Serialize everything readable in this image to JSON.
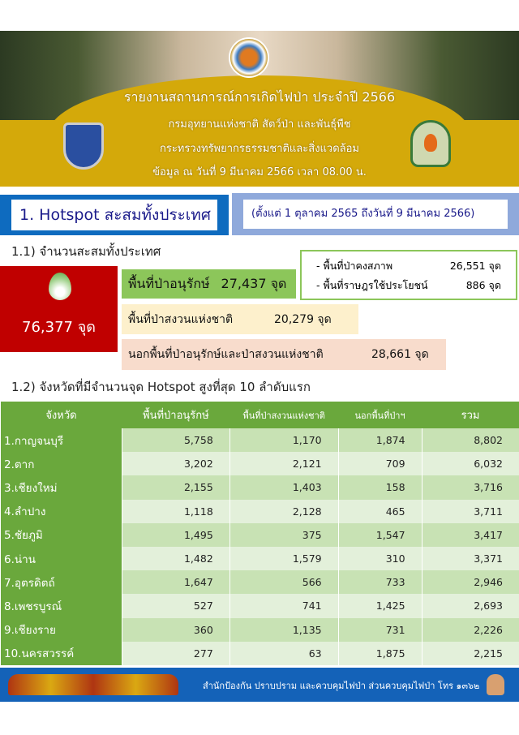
{
  "header": {
    "title": "รายงานสถานการณ์การเกิดไฟป่า ประจำปี 2566",
    "department": "กรมอุทยานแห่งชาติ สัตว์ป่า และพันธุ์พืช",
    "ministry": "กระทรวงทรัพยากรธรรมชาติและสิ่งแวดล้อม",
    "data_as_of": "ข้อมูล ณ วันที่ 9 มีนาคม 2566 เวลา 08.00 น."
  },
  "section1": {
    "title": "1.  Hotspot สะสมทั้งประเทศ",
    "period": "(ตั้งแต่ 1 ตุลาคม 2565 ถึงวันที่ 9 มีนาคม 2566)",
    "sub1": "1.1) จำนวนสะสมทั้งประเทศ",
    "total": "76,377 จุด",
    "conservation": {
      "label": "พื้นที่ป่าอนุรักษ์",
      "value": "27,437 จุด",
      "intact_label": "- พื้นที่ป่าคงสภาพ",
      "intact_value": "26,551  จุด",
      "used_label": "- พื้นที่ราษฎรใช้ประโยชน์",
      "used_value": "886  จุด"
    },
    "national_reserve": {
      "label": "พื้นที่ป่าสงวนแห่งชาติ",
      "value": "20,279 จุด"
    },
    "outside": {
      "label": "นอกพื้นที่ป่าอนุรักษ์และป่าสงวนแห่งชาติ",
      "value": "28,661 จุด"
    },
    "sub2": "1.2) จังหวัดที่มีจำนวนจุด Hotspot สูงที่สุด 10 ลำดับแรก"
  },
  "table": {
    "headers": [
      "จังหวัด",
      "พื้นที่ป่าอนุรักษ์",
      "พื้นที่ป่าสงวนแห่งชาติ",
      "นอกพื้นที่ป่าฯ",
      "รวม"
    ],
    "rows": [
      [
        "1.กาญจนบุรี",
        "5,758",
        "1,170",
        "1,874",
        "8,802"
      ],
      [
        "2.ตาก",
        "3,202",
        "2,121",
        "709",
        "6,032"
      ],
      [
        "3.เชียงใหม่",
        "2,155",
        "1,403",
        "158",
        "3,716"
      ],
      [
        "4.ลำปาง",
        "1,118",
        "2,128",
        "465",
        "3,711"
      ],
      [
        "5.ชัยภูมิ",
        "1,495",
        "375",
        "1,547",
        "3,417"
      ],
      [
        "6.น่าน",
        "1,482",
        "1,579",
        "310",
        "3,371"
      ],
      [
        "7.อุตรดิตถ์",
        "1,647",
        "566",
        "733",
        "2,946"
      ],
      [
        "8.เพชรบูรณ์",
        "527",
        "741",
        "1,425",
        "2,693"
      ],
      [
        "9.เชียงราย",
        "360",
        "1,135",
        "731",
        "2,226"
      ],
      [
        "10.นครสวรรค์",
        "277",
        "63",
        "1,875",
        "2,215"
      ]
    ]
  },
  "footer": {
    "text": "สำนักป้องกัน ปราบปราม และควบคุมไฟป่า ส่วนควบคุมไฟป่า โทร ๑๓๖๒"
  },
  "colors": {
    "banner_gold": "#d4a90a",
    "section_blue": "#0e6bbf",
    "total_red": "#c00000",
    "table_green": "#6aa83c",
    "footer_blue": "#1462b8"
  }
}
